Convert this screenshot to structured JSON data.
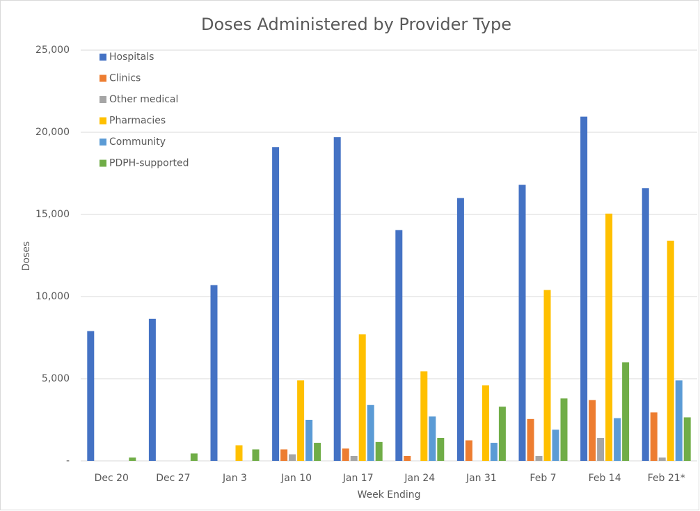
{
  "chart_data": {
    "type": "bar",
    "title": "Doses Administered by Provider Type",
    "x_label": "Week Ending",
    "y_label": "Doses",
    "categories": [
      "Dec 20",
      "Dec 27",
      "Jan 3",
      "Jan 10",
      "Jan 17",
      "Jan 24",
      "Jan 31",
      "Feb 7",
      "Feb 14",
      "Feb 21*"
    ],
    "series": [
      {
        "name": "Hospitals",
        "color": "#4472c4",
        "values": [
          7900,
          8650,
          10700,
          19100,
          19700,
          14050,
          16000,
          16800,
          20950,
          16600
        ]
      },
      {
        "name": "Clinics",
        "color": "#ed7d31",
        "values": [
          0,
          0,
          0,
          700,
          750,
          300,
          1250,
          2550,
          3700,
          2950
        ]
      },
      {
        "name": "Other medical",
        "color": "#a5a5a5",
        "values": [
          0,
          0,
          0,
          400,
          300,
          0,
          0,
          300,
          1400,
          200
        ]
      },
      {
        "name": "Pharmacies",
        "color": "#ffc000",
        "values": [
          0,
          0,
          950,
          4900,
          7700,
          5450,
          4600,
          10400,
          15050,
          13400
        ]
      },
      {
        "name": "Community",
        "color": "#5b9bd5",
        "values": [
          0,
          0,
          0,
          2500,
          3400,
          2700,
          1100,
          1900,
          2600,
          4900
        ]
      },
      {
        "name": "PDPH-supported",
        "color": "#70ad47",
        "values": [
          200,
          450,
          700,
          1100,
          1150,
          1400,
          3300,
          3800,
          6000,
          2650
        ]
      }
    ],
    "ylim": [
      0,
      25000
    ],
    "yticks": [
      {
        "value": 0,
        "label": "-"
      },
      {
        "value": 5000,
        "label": "5,000"
      },
      {
        "value": 10000,
        "label": "10,000"
      },
      {
        "value": 15000,
        "label": "15,000"
      },
      {
        "value": 20000,
        "label": "20,000"
      },
      {
        "value": 25000,
        "label": "25,000"
      }
    ],
    "grid": true,
    "legend": "top-left"
  }
}
